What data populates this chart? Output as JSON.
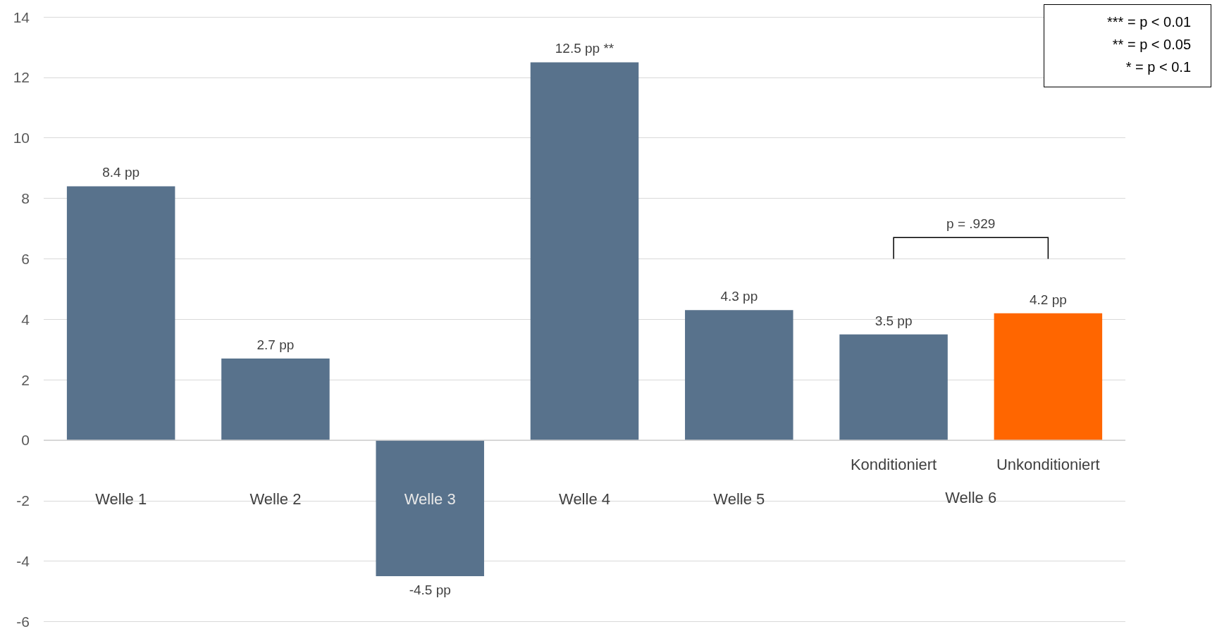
{
  "chart_data": {
    "type": "bar",
    "categories": [
      "Welle 1",
      "Welle 2",
      "Welle 3",
      "Welle 4",
      "Welle 5",
      "Konditioniert",
      "Unkonditioniert"
    ],
    "values": [
      8.4,
      2.7,
      -4.5,
      12.5,
      4.3,
      3.5,
      4.2
    ],
    "colors": [
      "#58728c",
      "#58728c",
      "#58728c",
      "#58728c",
      "#58728c",
      "#58728c",
      "#ff6600"
    ],
    "value_labels": [
      "8.4 pp",
      "2.7 pp",
      "-4.5 pp",
      "12.5 pp **",
      "4.3 pp",
      "3.5 pp",
      "4.2 pp"
    ],
    "ylim": [
      -6,
      14
    ],
    "yticks": [
      -6,
      -4,
      -2,
      0,
      2,
      4,
      6,
      8,
      10,
      12,
      14
    ],
    "grid": "y",
    "annotations": [
      "*** = p < 0.01",
      "** = p < 0.05",
      "* = p < 0.1",
      "p = .929",
      "Welle 6"
    ]
  }
}
